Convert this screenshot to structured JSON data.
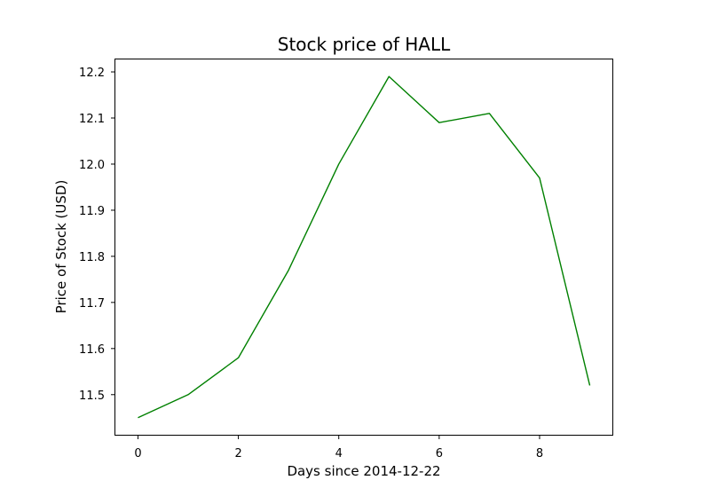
{
  "chart_data": {
    "type": "line",
    "title": "Stock price of HALL",
    "xlabel": "Days since 2014-12-22",
    "ylabel": "Price of Stock (USD)",
    "x": [
      0,
      1,
      2,
      3,
      4,
      5,
      6,
      7,
      8,
      9
    ],
    "series": [
      {
        "values": [
          11.45,
          11.5,
          11.58,
          11.77,
          12.0,
          12.19,
          12.09,
          12.11,
          11.97,
          11.52
        ],
        "color": "#008000"
      }
    ],
    "xlim": [
      -0.45,
      9.45
    ],
    "ylim": [
      11.413,
      12.227
    ],
    "xticks": [
      0,
      2,
      4,
      6,
      8
    ],
    "xtick_labels": [
      "0",
      "2",
      "4",
      "6",
      "8"
    ],
    "yticks": [
      11.5,
      11.6,
      11.7,
      11.8,
      11.9,
      12.0,
      12.1,
      12.2
    ],
    "ytick_labels": [
      "11.5",
      "11.6",
      "11.7",
      "11.8",
      "11.9",
      "12.0",
      "12.1",
      "12.2"
    ],
    "grid": false,
    "legend": "none"
  }
}
